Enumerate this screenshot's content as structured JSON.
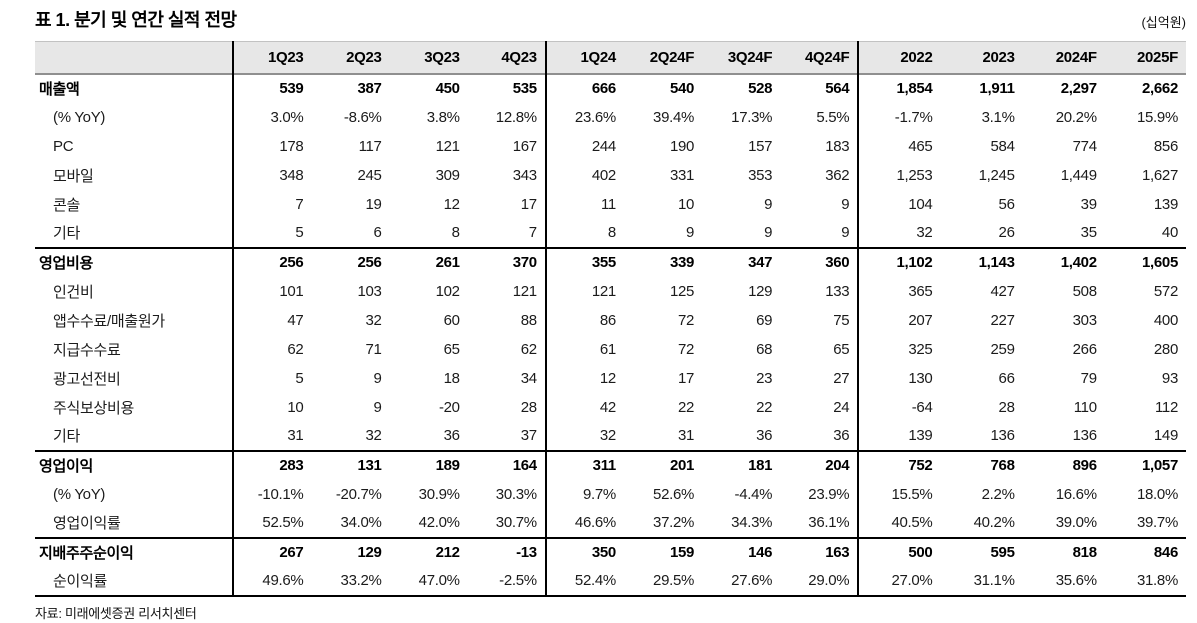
{
  "title": "표 1. 분기 및 연간 실적 전망",
  "unit": "(십억원)",
  "source": "자료: 미래에셋증권 리서치센터",
  "table": {
    "columns": [
      "1Q23",
      "2Q23",
      "3Q23",
      "4Q23",
      "1Q24",
      "2Q24F",
      "3Q24F",
      "4Q24F",
      "2022",
      "2023",
      "2024F",
      "2025F"
    ],
    "rows": [
      {
        "label": "매출액",
        "bold": true,
        "indent": false,
        "section_end": false,
        "values": [
          "539",
          "387",
          "450",
          "535",
          "666",
          "540",
          "528",
          "564",
          "1,854",
          "1,911",
          "2,297",
          "2,662"
        ]
      },
      {
        "label": "(% YoY)",
        "bold": false,
        "indent": true,
        "section_end": false,
        "values": [
          "3.0%",
          "-8.6%",
          "3.8%",
          "12.8%",
          "23.6%",
          "39.4%",
          "17.3%",
          "5.5%",
          "-1.7%",
          "3.1%",
          "20.2%",
          "15.9%"
        ]
      },
      {
        "label": "PC",
        "bold": false,
        "indent": true,
        "section_end": false,
        "values": [
          "178",
          "117",
          "121",
          "167",
          "244",
          "190",
          "157",
          "183",
          "465",
          "584",
          "774",
          "856"
        ]
      },
      {
        "label": "모바일",
        "bold": false,
        "indent": true,
        "section_end": false,
        "values": [
          "348",
          "245",
          "309",
          "343",
          "402",
          "331",
          "353",
          "362",
          "1,253",
          "1,245",
          "1,449",
          "1,627"
        ]
      },
      {
        "label": "콘솔",
        "bold": false,
        "indent": true,
        "section_end": false,
        "values": [
          "7",
          "19",
          "12",
          "17",
          "11",
          "10",
          "9",
          "9",
          "104",
          "56",
          "39",
          "139"
        ]
      },
      {
        "label": "기타",
        "bold": false,
        "indent": true,
        "section_end": true,
        "values": [
          "5",
          "6",
          "8",
          "7",
          "8",
          "9",
          "9",
          "9",
          "32",
          "26",
          "35",
          "40"
        ]
      },
      {
        "label": "영업비용",
        "bold": true,
        "indent": false,
        "section_end": false,
        "values": [
          "256",
          "256",
          "261",
          "370",
          "355",
          "339",
          "347",
          "360",
          "1,102",
          "1,143",
          "1,402",
          "1,605"
        ]
      },
      {
        "label": "인건비",
        "bold": false,
        "indent": true,
        "section_end": false,
        "values": [
          "101",
          "103",
          "102",
          "121",
          "121",
          "125",
          "129",
          "133",
          "365",
          "427",
          "508",
          "572"
        ]
      },
      {
        "label": "앱수수료/매출원가",
        "bold": false,
        "indent": true,
        "section_end": false,
        "values": [
          "47",
          "32",
          "60",
          "88",
          "86",
          "72",
          "69",
          "75",
          "207",
          "227",
          "303",
          "400"
        ]
      },
      {
        "label": "지급수수료",
        "bold": false,
        "indent": true,
        "section_end": false,
        "values": [
          "62",
          "71",
          "65",
          "62",
          "61",
          "72",
          "68",
          "65",
          "325",
          "259",
          "266",
          "280"
        ]
      },
      {
        "label": "광고선전비",
        "bold": false,
        "indent": true,
        "section_end": false,
        "values": [
          "5",
          "9",
          "18",
          "34",
          "12",
          "17",
          "23",
          "27",
          "130",
          "66",
          "79",
          "93"
        ]
      },
      {
        "label": "주식보상비용",
        "bold": false,
        "indent": true,
        "section_end": false,
        "values": [
          "10",
          "9",
          "-20",
          "28",
          "42",
          "22",
          "22",
          "24",
          "-64",
          "28",
          "110",
          "112"
        ]
      },
      {
        "label": "기타",
        "bold": false,
        "indent": true,
        "section_end": true,
        "values": [
          "31",
          "32",
          "36",
          "37",
          "32",
          "31",
          "36",
          "36",
          "139",
          "136",
          "136",
          "149"
        ]
      },
      {
        "label": "영업이익",
        "bold": true,
        "indent": false,
        "section_end": false,
        "values": [
          "283",
          "131",
          "189",
          "164",
          "311",
          "201",
          "181",
          "204",
          "752",
          "768",
          "896",
          "1,057"
        ]
      },
      {
        "label": "(% YoY)",
        "bold": false,
        "indent": true,
        "section_end": false,
        "values": [
          "-10.1%",
          "-20.7%",
          "30.9%",
          "30.3%",
          "9.7%",
          "52.6%",
          "-4.4%",
          "23.9%",
          "15.5%",
          "2.2%",
          "16.6%",
          "18.0%"
        ]
      },
      {
        "label": "영업이익률",
        "bold": false,
        "indent": true,
        "section_end": true,
        "values": [
          "52.5%",
          "34.0%",
          "42.0%",
          "30.7%",
          "46.6%",
          "37.2%",
          "34.3%",
          "36.1%",
          "40.5%",
          "40.2%",
          "39.0%",
          "39.7%"
        ]
      },
      {
        "label": "지배주주순이익",
        "bold": true,
        "indent": false,
        "section_end": false,
        "values": [
          "267",
          "129",
          "212",
          "-13",
          "350",
          "159",
          "146",
          "163",
          "500",
          "595",
          "818",
          "846"
        ]
      },
      {
        "label": "순이익률",
        "bold": false,
        "indent": true,
        "section_end": false,
        "values": [
          "49.6%",
          "33.2%",
          "47.0%",
          "-2.5%",
          "52.4%",
          "29.5%",
          "27.6%",
          "29.0%",
          "27.0%",
          "31.1%",
          "35.6%",
          "31.8%"
        ]
      }
    ]
  }
}
